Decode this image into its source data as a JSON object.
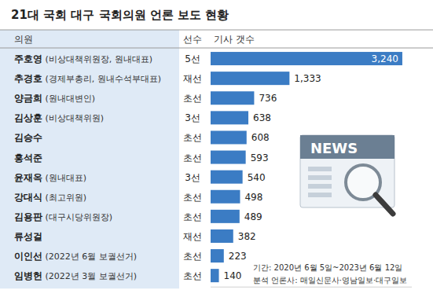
{
  "chart_data": {
    "type": "bar",
    "orientation": "horizontal",
    "title": "21대 국회 대구 국회의원 언론 보도 현황",
    "column_headers": [
      "의원",
      "선수",
      "기사 갯수"
    ],
    "categories": [
      "주호영 (비상대책위원장, 원내대표)",
      "추경호 (경제부총리, 원내수석부대표)",
      "양금희 (원내대변인)",
      "김상훈 (비상대책위원)",
      "김승수",
      "홍석준",
      "윤재옥 (원내대표)",
      "강대식 (최고위원)",
      "김용판 (대구시당위원장)",
      "류성걸",
      "이인선 (2022년 6월 보궐선거)",
      "임병헌 (2022년 3월 보궐선거)"
    ],
    "terms": [
      "5선",
      "재선",
      "초선",
      "3선",
      "초선",
      "초선",
      "3선",
      "초선",
      "초선",
      "재선",
      "초선",
      "초선"
    ],
    "values": [
      3240,
      1333,
      736,
      638,
      608,
      593,
      540,
      498,
      489,
      382,
      223,
      140
    ],
    "value_labels": [
      "3,240",
      "1,333",
      "736",
      "638",
      "608",
      "593",
      "540",
      "498",
      "489",
      "382",
      "223",
      "140"
    ],
    "color": "#3b7cc4",
    "xlim": [
      0,
      3400
    ],
    "tick_labels": false,
    "data_labels": true,
    "grid": false,
    "annotations": [
      "기간: 2020년 6월 5일~2023년 6월 12일",
      "분석 언론사: 매일신문사·영남일보·대구일보"
    ],
    "icon_text": "NEWS"
  }
}
